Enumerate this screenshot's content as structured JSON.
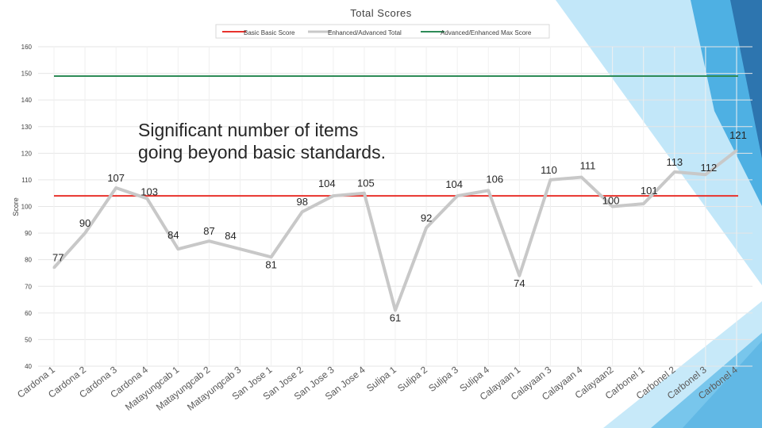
{
  "chart_data": {
    "type": "line",
    "title": "Total Scores",
    "ylabel": "Score",
    "xlabel": "",
    "ylim": [
      40,
      160
    ],
    "yticks": [
      40,
      50,
      60,
      70,
      80,
      90,
      100,
      110,
      120,
      130,
      140,
      150,
      160
    ],
    "grid": true,
    "legend_position": "top",
    "categories": [
      "Cardona 1",
      "Cardona 2",
      "Cardona 3",
      "Cardona 4",
      "Matayungcab 1",
      "Matayungcab 2",
      "Matayungcab 3",
      "San Jose 1",
      "San Jose 2",
      "San Jose 3",
      "San Jose 4",
      "Sulipa 1",
      "Sulipa 2",
      "Sulipa 3",
      "Sulipa 4",
      "Calayaan 1",
      "Calayaan 3",
      "Calayaan 4",
      "Calayaan2",
      "Carbonel 1",
      "Carbonel 2",
      "Carbonel 3",
      "Carbonel 4"
    ],
    "series": [
      {
        "name": "Basic Basic Score",
        "color": "#e8322c",
        "values": [
          104,
          104,
          104,
          104,
          104,
          104,
          104,
          104,
          104,
          104,
          104,
          104,
          104,
          104,
          104,
          104,
          104,
          104,
          104,
          104,
          104,
          104,
          104
        ]
      },
      {
        "name": "Enhanced/Advanced Total",
        "color": "#c8c8c8",
        "values": [
          77,
          90,
          107,
          103,
          84,
          87,
          84,
          81,
          98,
          104,
          105,
          61,
          92,
          104,
          106,
          74,
          110,
          111,
          100,
          101,
          113,
          112,
          121
        ]
      },
      {
        "name": "Advanced/Enhanced Max Score",
        "color": "#2e8b57",
        "values": [
          149,
          149,
          149,
          149,
          149,
          149,
          149,
          149,
          149,
          149,
          149,
          149,
          149,
          149,
          149,
          149,
          149,
          149,
          149,
          149,
          149,
          149,
          149
        ]
      }
    ],
    "data_labels": [
      "77",
      "90",
      "107",
      "103",
      "84",
      "87",
      "84",
      "81",
      "98",
      "104",
      "105",
      "61",
      "92",
      "104",
      "106",
      "74",
      "110",
      "111",
      "100",
      "101",
      "113",
      "112",
      "121"
    ],
    "annotation": [
      "Significant number of items",
      "going beyond basic standards."
    ]
  },
  "colors": {
    "accent_blue": "#3aa6df",
    "accent_light": "#8fd3f4",
    "gridline": "#e6e6e6"
  }
}
